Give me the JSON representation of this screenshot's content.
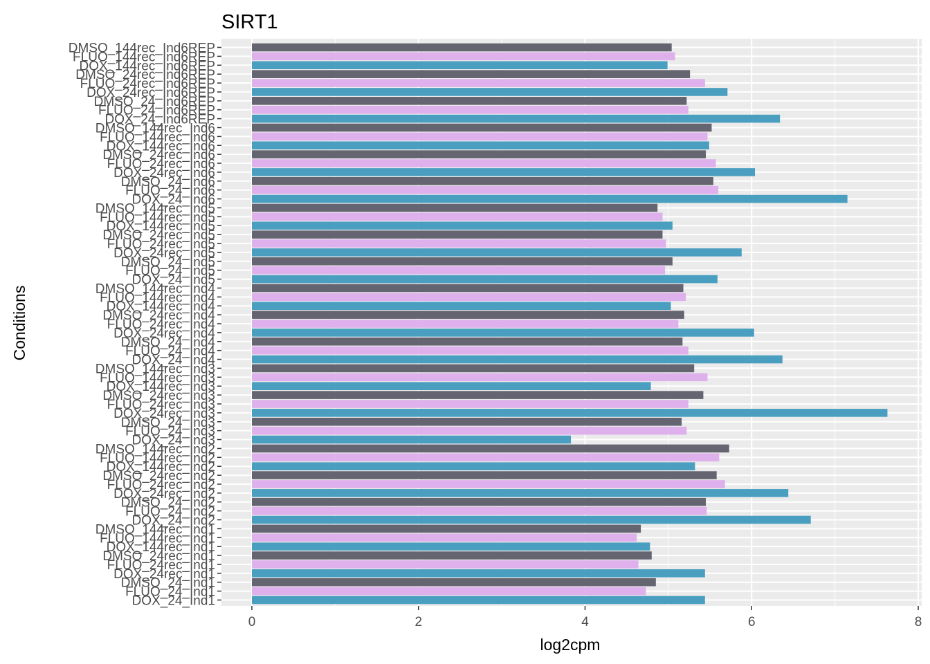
{
  "chart_data": {
    "type": "bar",
    "orientation": "horizontal",
    "title": "SIRT1",
    "xlabel": "log2cpm",
    "ylabel": "Conditions",
    "xlim": [
      0,
      8
    ],
    "xticks": [
      0,
      2,
      4,
      6,
      8
    ],
    "grid": true,
    "legend": "none",
    "colors": {
      "DMSO": "#656571",
      "FLUO": "#deb0ec",
      "DOX": "#4a9fc0",
      "panel": "#ebebeb",
      "grid": "#ffffff"
    },
    "categories": [
      "DMSO_144rec_Ind6REP",
      "FLUO_144rec_Ind6REP",
      "DOX_144rec_Ind6REP",
      "DMSO_24rec_Ind6REP",
      "FLUO_24rec_Ind6REP",
      "DOX_24rec_Ind6REP",
      "DMSO_24_Ind6REP",
      "FLUO_24_Ind6REP",
      "DOX_24_Ind6REP",
      "DMSO_144rec_Ind6",
      "FLUO_144rec_Ind6",
      "DOX_144rec_Ind6",
      "DMSO_24rec_Ind6",
      "FLUO_24rec_Ind6",
      "DOX_24rec_Ind6",
      "DMSO_24_Ind6",
      "FLUO_24_Ind6",
      "DOX_24_Ind6",
      "DMSO_144rec_Ind5",
      "FLUO_144rec_Ind5",
      "DOX_144rec_Ind5",
      "DMSO_24rec_Ind5",
      "FLUO_24rec_Ind5",
      "DOX_24rec_Ind5",
      "DMSO_24_Ind5",
      "FLUO_24_Ind5",
      "DOX_24_Ind5",
      "DMSO_144rec_Ind4",
      "FLUO_144rec_Ind4",
      "DOX_144rec_Ind4",
      "DMSO_24rec_Ind4",
      "FLUO_24rec_Ind4",
      "DOX_24rec_Ind4",
      "DMSO_24_Ind4",
      "FLUO_24_Ind4",
      "DOX_24_Ind4",
      "DMSO_144rec_Ind3",
      "FLUO_144rec_Ind3",
      "DOX_144rec_Ind3",
      "DMSO_24rec_Ind3",
      "FLUO_24rec_Ind3",
      "DOX_24rec_Ind3",
      "DMSO_24_Ind3",
      "FLUO_24_Ind3",
      "DOX_24_Ind3",
      "DMSO_144rec_Ind2",
      "FLUO_144rec_Ind2",
      "DOX_144rec_Ind2",
      "DMSO_24rec_Ind2",
      "FLUO_24rec_Ind2",
      "DOX_24rec_Ind2",
      "DMSO_24_Ind2",
      "FLUO_24_Ind2",
      "DOX_24_Ind2",
      "DMSO_144rec_Ind1",
      "FLUO_144rec_Ind1",
      "DOX_144rec_Ind1",
      "DMSO_24rec_Ind1",
      "FLUO_24rec_Ind1",
      "DOX_24rec_Ind1",
      "DMSO_24_Ind1",
      "FLUO_24_Ind1",
      "DOX_24_Ind1"
    ],
    "values": [
      5.04,
      5.08,
      4.99,
      5.26,
      5.44,
      5.71,
      5.22,
      5.24,
      6.34,
      5.52,
      5.47,
      5.49,
      5.45,
      5.57,
      6.04,
      5.54,
      5.6,
      7.15,
      4.87,
      4.93,
      5.05,
      4.93,
      4.97,
      5.88,
      5.05,
      4.96,
      5.59,
      5.18,
      5.21,
      5.03,
      5.19,
      5.12,
      6.03,
      5.17,
      5.24,
      6.37,
      5.31,
      5.47,
      4.79,
      5.42,
      5.24,
      7.63,
      5.16,
      5.22,
      3.83,
      5.73,
      5.61,
      5.32,
      5.58,
      5.68,
      6.44,
      5.45,
      5.46,
      6.71,
      4.67,
      4.62,
      4.78,
      4.8,
      4.64,
      5.44,
      4.85,
      4.73,
      5.44
    ]
  }
}
